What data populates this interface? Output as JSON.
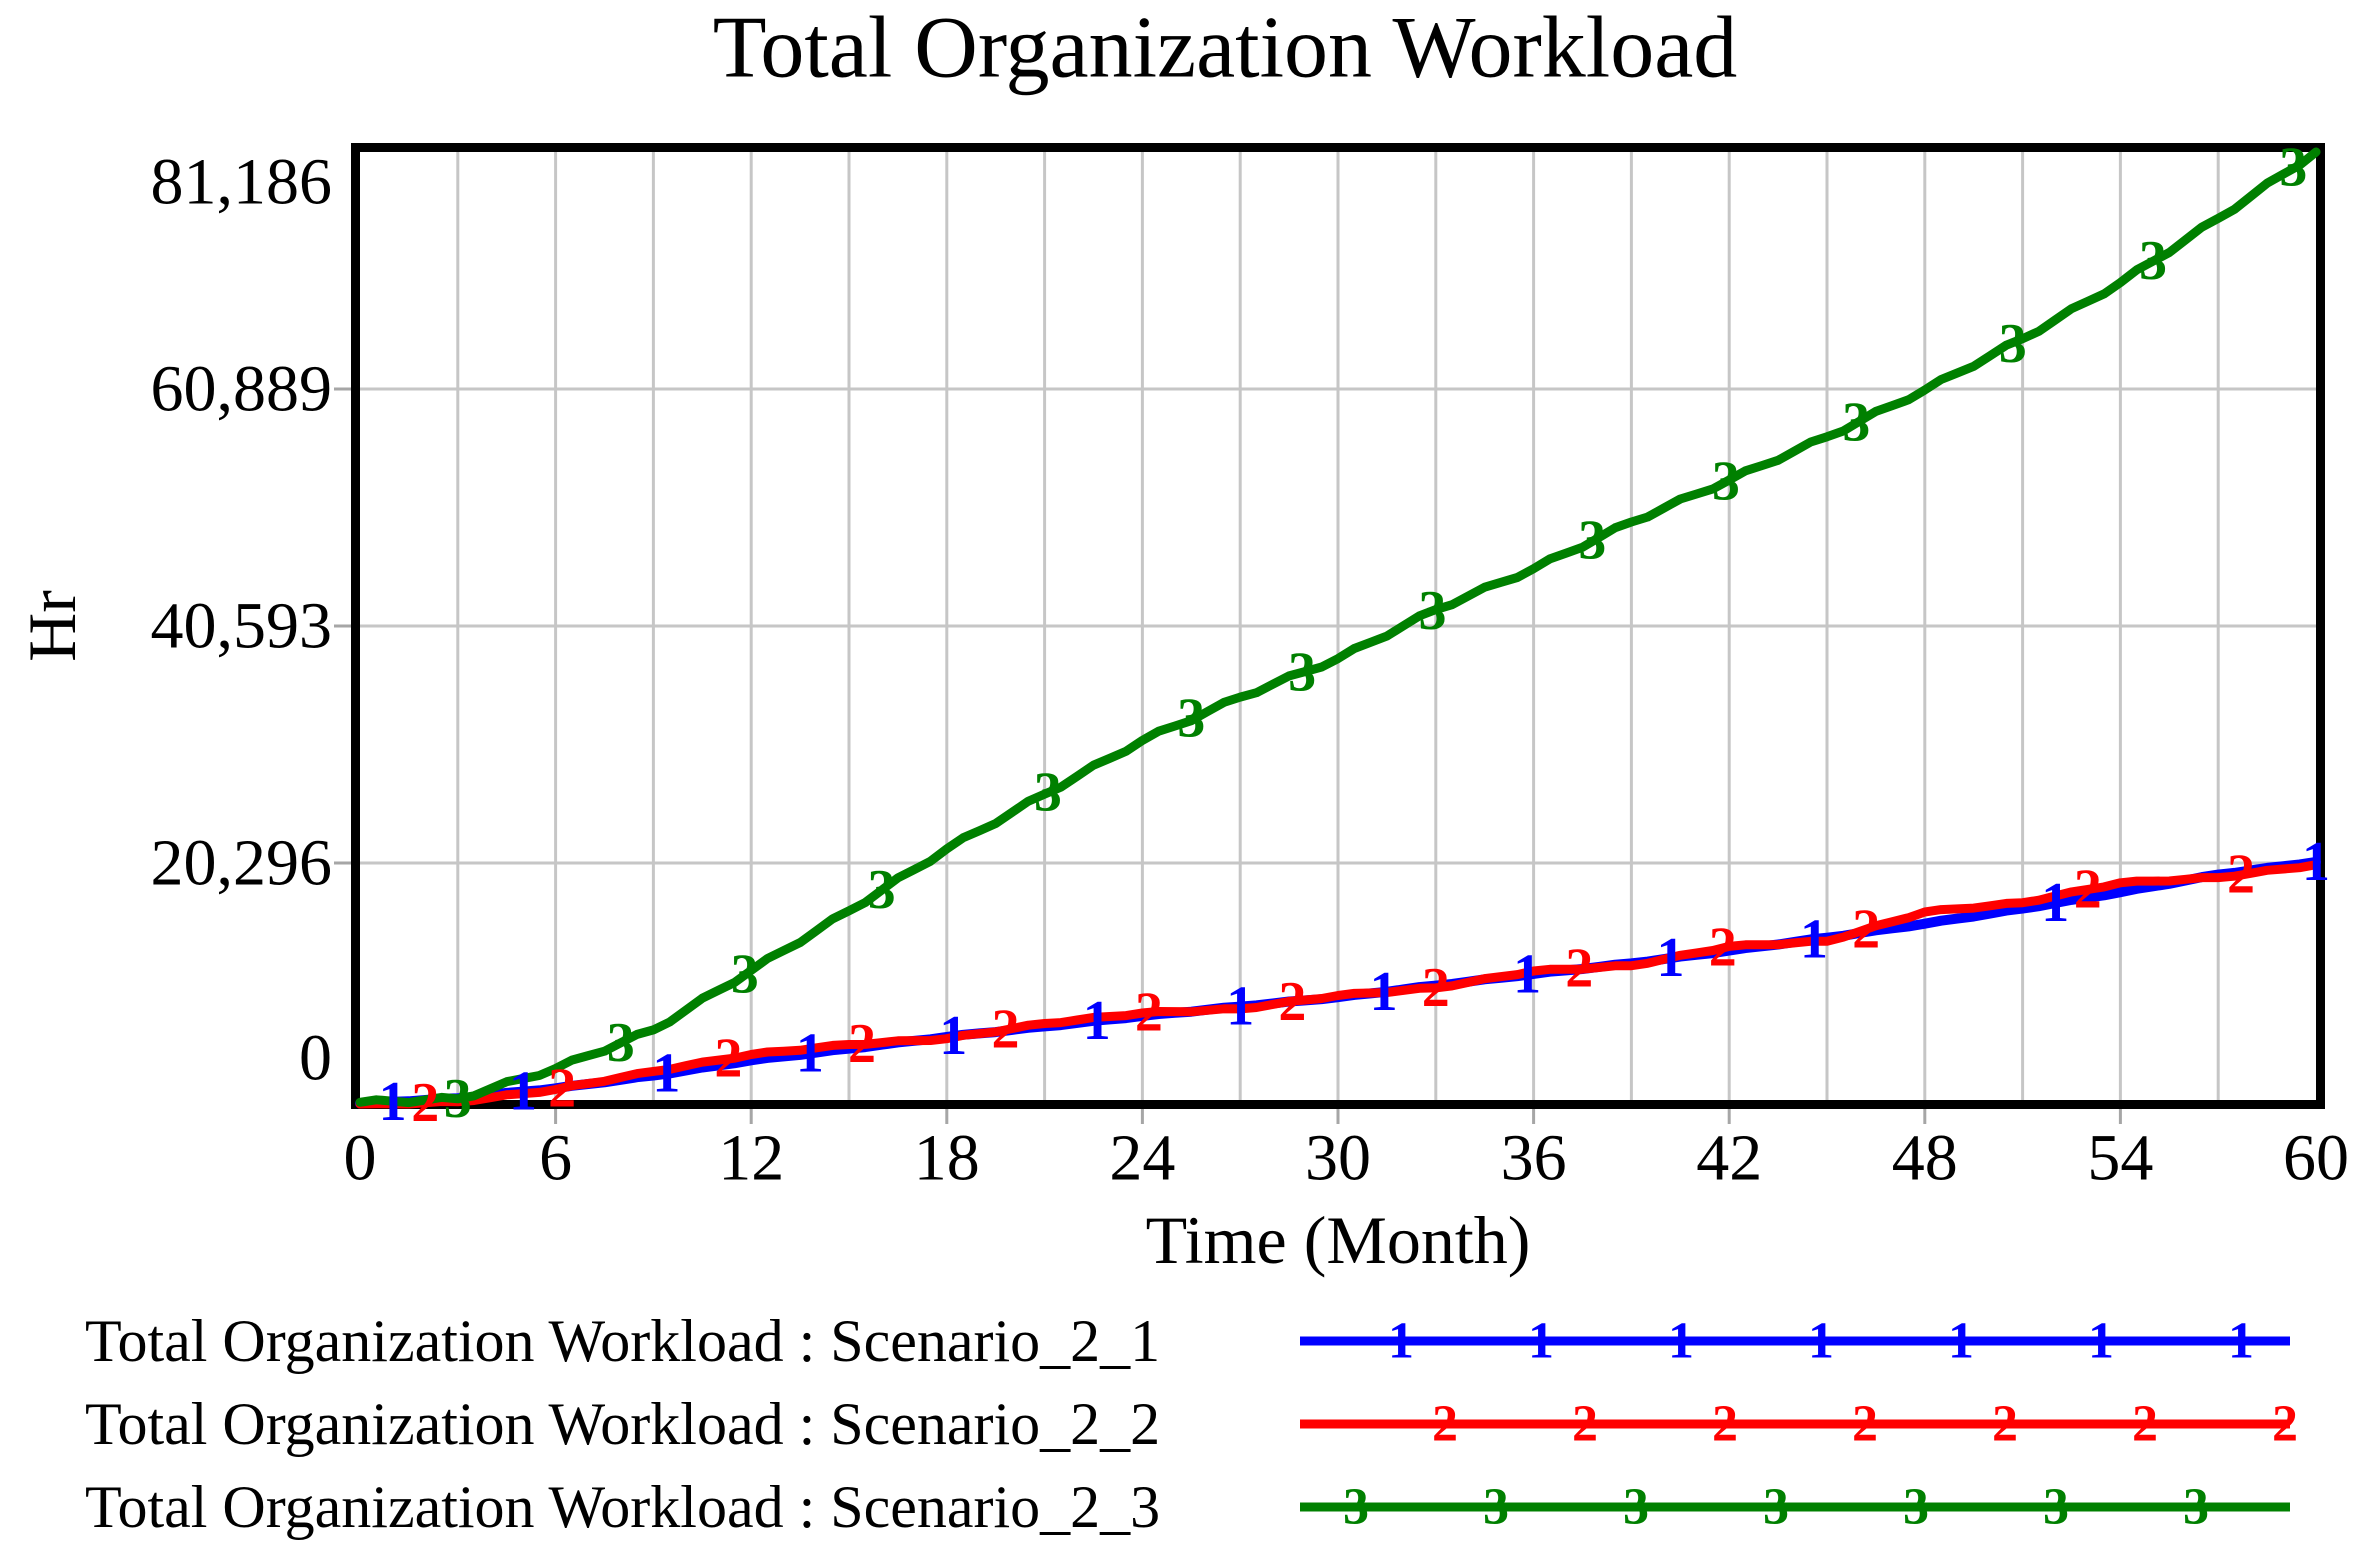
{
  "title": "Total Organization Workload",
  "axes": {
    "x_label": "Time (Month)",
    "y_label": "Hr",
    "x_tick_labels": [
      "0",
      "6",
      "12",
      "18",
      "24",
      "30",
      "36",
      "42",
      "48",
      "54",
      "60"
    ],
    "y_tick_labels": [
      "0",
      "20,296",
      "40,593",
      "60,889",
      "81,186"
    ]
  },
  "colors": {
    "series1": "#0000ff",
    "series2": "#ff0000",
    "series3": "#008000",
    "grid": "#c6c6c6",
    "tick": "#a6a6a6",
    "border": "#000000",
    "text": "#000000"
  },
  "legend": {
    "items": [
      {
        "label": "Total Organization Workload : Scenario_2_1",
        "marker": "1",
        "color": "#0000ff"
      },
      {
        "label": "Total Organization Workload : Scenario_2_2",
        "marker": "2",
        "color": "#ff0000"
      },
      {
        "label": "Total Organization Workload : Scenario_2_3",
        "marker": "3",
        "color": "#008000"
      }
    ]
  },
  "chart_data": {
    "type": "line",
    "title": "Total Organization Workload",
    "xlabel": "Time (Month)",
    "ylabel": "Hr",
    "xlim": [
      0,
      60
    ],
    "ylim": [
      0,
      81186
    ],
    "x_ticks": [
      0,
      6,
      12,
      18,
      24,
      30,
      36,
      42,
      48,
      54,
      60
    ],
    "y_ticks": [
      0,
      20296,
      40593,
      60889,
      81186
    ],
    "grid": {
      "x_step_months": 3,
      "legend_position": "bottom-left"
    },
    "x": [
      0,
      3,
      6,
      9,
      12,
      15,
      18,
      21,
      24,
      27,
      30,
      33,
      36,
      39,
      42,
      45,
      48,
      51,
      54,
      57,
      60
    ],
    "series": [
      {
        "name": "Total Organization Workload : Scenario_2_1",
        "scenario": "Scenario_2_1",
        "marker": "1",
        "color": "#0000ff",
        "values": [
          -300,
          150,
          1000,
          2100,
          3400,
          4400,
          5400,
          6300,
          7200,
          8000,
          8800,
          9800,
          10800,
          11700,
          12800,
          13900,
          15100,
          16400,
          17800,
          19300,
          20380
        ],
        "marker_months": [
          1,
          5,
          9.4,
          13.8,
          18.2,
          22.6,
          27,
          31.4,
          35.8,
          40.2,
          44.6,
          52,
          60
        ],
        "ripple": 35
      },
      {
        "name": "Total Organization Workload : Scenario_2_2",
        "scenario": "Scenario_2_2",
        "marker": "2",
        "color": "#ff0000",
        "values": [
          -430,
          -150,
          900,
          2450,
          3900,
          4750,
          5250,
          6550,
          7450,
          7800,
          8950,
          9600,
          11050,
          11500,
          13150,
          13600,
          16100,
          16900,
          18600,
          19050,
          20150
        ],
        "marker_months": [
          2,
          6.2,
          11.3,
          15.4,
          19.8,
          24.2,
          28.6,
          33,
          37.4,
          41.8,
          46.2,
          53,
          57.7
        ],
        "ripple": 70
      },
      {
        "name": "Total Organization Workload : Scenario_2_3",
        "scenario": "Scenario_2_3",
        "marker": "3",
        "color": "#008000",
        "values": [
          -200,
          100,
          2700,
          6000,
          11100,
          16200,
          21500,
          26200,
          30800,
          34500,
          37800,
          42000,
          45500,
          49500,
          53100,
          56800,
          60800,
          65200,
          70000,
          75500,
          81186
        ],
        "marker_months": [
          3,
          8,
          11.8,
          16,
          21.1,
          25.5,
          28.9,
          32.9,
          37.8,
          41.9,
          45.9,
          50.7,
          55,
          59.3
        ],
        "ripple": 170
      }
    ]
  }
}
